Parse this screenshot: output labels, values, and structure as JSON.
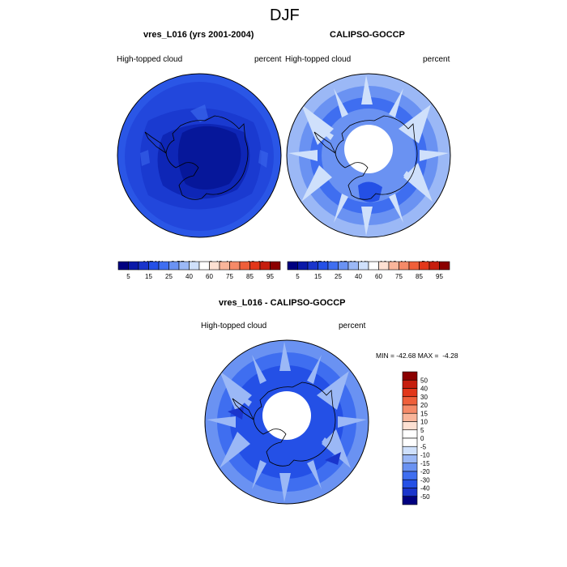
{
  "main_title": "DJF",
  "panels": [
    {
      "title": "vres_L016 (yrs 2001-2004)",
      "left_label": "High-topped cloud",
      "right_label": "percent",
      "stats": {
        "mean_label": "MEAN=",
        "mean": "8.57",
        "min_label": "Min=",
        "min": "0.43",
        "max_label": "Max=",
        "max": "18.40"
      }
    },
    {
      "title": "CALIPSO-GOCCP",
      "left_label": "High-topped cloud",
      "right_label": "percent",
      "stats": {
        "mean_label": "MEAN=",
        "mean": "27.89",
        "min_label": "Min=",
        "min": "10.13",
        "max_label": "Max=",
        "max": "54.04"
      }
    },
    {
      "title": "vres_L016 - CALIPSO-GOCCP",
      "left_label": "High-topped cloud",
      "right_label": "percent",
      "minmax": "MIN = -42.68 MAX =  -4.28"
    }
  ],
  "chart_data": [
    {
      "type": "heatmap",
      "projection": "south-polar-stereographic",
      "title": "vres_L016 (yrs 2001-2004)",
      "variable": "High-topped cloud",
      "units": "percent",
      "mean": 8.57,
      "min": 0.43,
      "max": 18.4,
      "colorbar": {
        "orientation": "horizontal",
        "levels": [
          5,
          10,
          15,
          20,
          25,
          30,
          40,
          50,
          60,
          70,
          75,
          80,
          85,
          90,
          95
        ],
        "tick_labels": [
          "5",
          "15",
          "25",
          "40",
          "60",
          "75",
          "85",
          "95"
        ],
        "colors": [
          "#000080",
          "#0a19a8",
          "#1a35cc",
          "#2450e6",
          "#3f6ef0",
          "#6a92f2",
          "#9bb8f6",
          "#cfe0fb",
          "#ffffff",
          "#fde0d2",
          "#f9b59a",
          "#f58a68",
          "#ef5f3a",
          "#e2371a",
          "#c61e0e",
          "#8b0000"
        ]
      }
    },
    {
      "type": "heatmap",
      "projection": "south-polar-stereographic",
      "title": "CALIPSO-GOCCP",
      "variable": "High-topped cloud",
      "units": "percent",
      "mean": 27.89,
      "min": 10.13,
      "max": 54.04,
      "colorbar": {
        "orientation": "horizontal",
        "levels": [
          5,
          10,
          15,
          20,
          25,
          30,
          40,
          50,
          60,
          70,
          75,
          80,
          85,
          90,
          95
        ],
        "tick_labels": [
          "5",
          "15",
          "25",
          "40",
          "60",
          "75",
          "85",
          "95"
        ],
        "colors": [
          "#000080",
          "#0a19a8",
          "#1a35cc",
          "#2450e6",
          "#3f6ef0",
          "#6a92f2",
          "#9bb8f6",
          "#cfe0fb",
          "#ffffff",
          "#fde0d2",
          "#f9b59a",
          "#f58a68",
          "#ef5f3a",
          "#e2371a",
          "#c61e0e",
          "#8b0000"
        ]
      }
    },
    {
      "type": "heatmap",
      "projection": "south-polar-stereographic",
      "title": "vres_L016 - CALIPSO-GOCCP",
      "variable": "High-topped cloud",
      "units": "percent",
      "min": -42.68,
      "max": -4.28,
      "colorbar": {
        "orientation": "vertical",
        "levels": [
          50,
          40,
          30,
          20,
          15,
          10,
          5,
          0,
          -5,
          -10,
          -15,
          -20,
          -30,
          -40,
          -50
        ],
        "tick_labels": [
          "50",
          "40",
          "30",
          "20",
          "15",
          "10",
          "5",
          "0",
          "-5",
          "-10",
          "-15",
          "-20",
          "-30",
          "-40",
          "-50"
        ],
        "colors": [
          "#8b0000",
          "#c61e0e",
          "#e2371a",
          "#ef5f3a",
          "#f58a68",
          "#f9b59a",
          "#fde0d2",
          "#ffffff",
          "#ffffff",
          "#cfe0fb",
          "#9bb8f6",
          "#6a92f2",
          "#3f6ef0",
          "#2450e6",
          "#1a35cc",
          "#000080"
        ]
      }
    }
  ]
}
